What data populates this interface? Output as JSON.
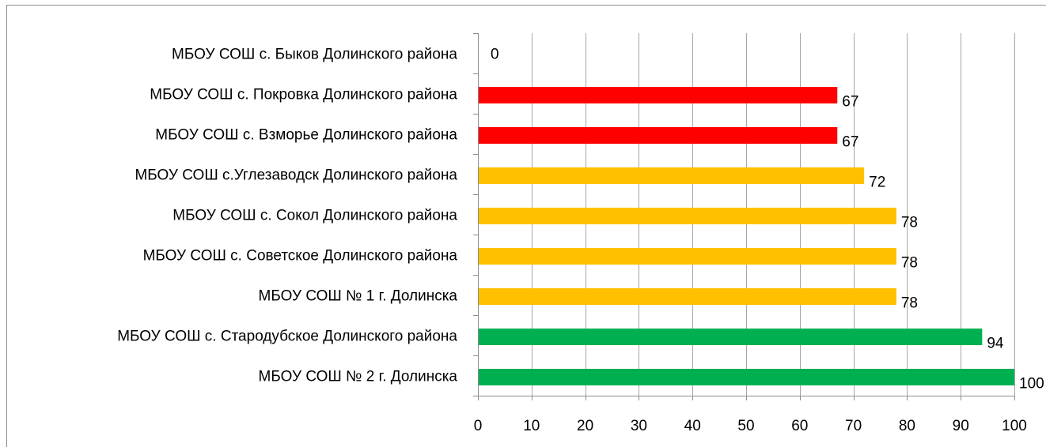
{
  "chart_data": {
    "type": "bar",
    "orientation": "horizontal",
    "categories": [
      "МБОУ СОШ с. Быков Долинского района",
      "МБОУ СОШ с. Покровка Долинского района",
      "МБОУ СОШ с. Взморье Долинского района",
      "МБОУ СОШ с.Углезаводск Долинского района",
      "МБОУ СОШ с. Сокол Долинского района",
      "МБОУ СОШ с. Советское Долинского района",
      "МБОУ СОШ № 1 г. Долинска",
      "МБОУ СОШ с. Стародубское Долинского района",
      "МБОУ СОШ № 2 г. Долинска"
    ],
    "values": [
      0,
      67,
      67,
      72,
      78,
      78,
      78,
      94,
      100
    ],
    "value_labels": [
      "0",
      "67",
      "67",
      "72",
      "78",
      "78",
      "78",
      "94",
      "100"
    ],
    "bar_colors": [
      "#ff0000",
      "#ff0000",
      "#ff0000",
      "#ffc000",
      "#ffc000",
      "#ffc000",
      "#ffc000",
      "#00b050",
      "#00b050"
    ],
    "xlim": [
      0,
      100
    ],
    "xticks": [
      0,
      10,
      20,
      30,
      40,
      50,
      60,
      70,
      80,
      90,
      100
    ],
    "grid": true,
    "gridline_color": "#a6a6a6",
    "axis_color": "#8c8c8c",
    "title": "",
    "xlabel": "",
    "ylabel": ""
  }
}
